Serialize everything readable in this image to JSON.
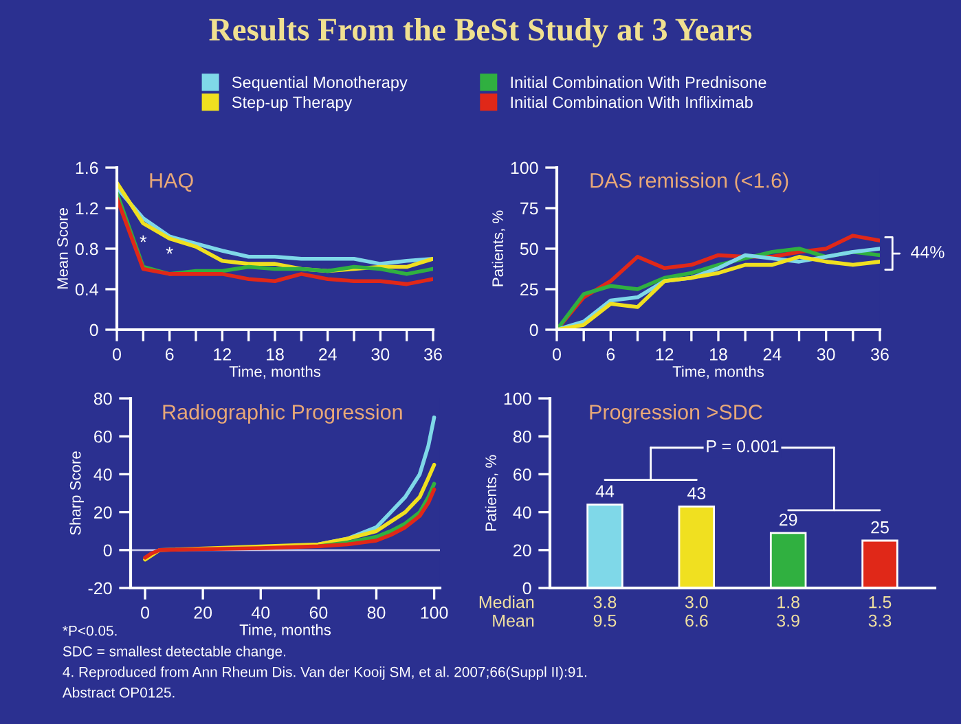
{
  "chart_data": [
    {
      "type": "other",
      "title": "Results From the BeSt Study at 3 Years",
      "annotations": [
        "*P<0.05.",
        "SDC = smallest detectable change.",
        "4. Reproduced from Ann Rheum Dis. Van der Kooij SM, et al. 2007;66(Suppl II):91.",
        "Abstract OP0125."
      ]
    },
    {
      "type": "line",
      "title": "HAQ",
      "xlabel": "Time, months",
      "ylabel": "Mean Score",
      "legend": "top",
      "grid": false,
      "x": [
        0,
        3,
        6,
        9,
        12,
        15,
        18,
        21,
        24,
        27,
        30,
        33,
        36
      ],
      "xlim": [
        0,
        36
      ],
      "xticks": [
        0,
        {
          "value": 3,
          "label": null
        },
        6,
        {
          "value": 9,
          "label": null
        },
        12,
        {
          "value": 15,
          "label": null
        },
        18,
        {
          "value": 21,
          "label": null
        },
        24,
        {
          "value": 27,
          "label": null
        },
        30,
        {
          "value": 33,
          "label": null
        },
        36
      ],
      "ylim": [
        0,
        1.6
      ],
      "yticks": [
        0,
        0.4,
        0.8,
        1.2,
        1.6
      ],
      "series": [
        {
          "name": "Sequential Monotherapy",
          "color": "#7fd8e8",
          "values": [
            1.4,
            1.1,
            0.92,
            0.85,
            0.78,
            0.72,
            0.72,
            0.7,
            0.7,
            0.7,
            0.65,
            0.68,
            0.7
          ]
        },
        {
          "name": "Step-up Therapy",
          "color": "#f0e020",
          "values": [
            1.45,
            1.05,
            0.9,
            0.82,
            0.68,
            0.65,
            0.65,
            0.6,
            0.58,
            0.6,
            0.62,
            0.62,
            0.7
          ]
        },
        {
          "name": "Initial Combination With Prednisone",
          "color": "#30b040",
          "values": [
            1.35,
            0.62,
            0.55,
            0.58,
            0.58,
            0.62,
            0.6,
            0.6,
            0.58,
            0.62,
            0.6,
            0.55,
            0.6
          ]
        },
        {
          "name": "Initial Combination With Infliximab",
          "color": "#e02818",
          "values": [
            1.3,
            0.6,
            0.55,
            0.55,
            0.55,
            0.5,
            0.48,
            0.55,
            0.5,
            0.48,
            0.48,
            0.45,
            0.5
          ]
        }
      ],
      "annotations": [
        "*",
        "*"
      ]
    },
    {
      "type": "line",
      "title": "DAS remission (<1.6)",
      "xlabel": "Time, months",
      "ylabel": "Patients, %",
      "grid": false,
      "x": [
        0,
        3,
        6,
        9,
        12,
        15,
        18,
        21,
        24,
        27,
        30,
        33,
        36
      ],
      "xlim": [
        0,
        36
      ],
      "xticks": [
        0,
        {
          "value": 3,
          "label": null
        },
        6,
        {
          "value": 9,
          "label": null
        },
        12,
        {
          "value": 15,
          "label": null
        },
        18,
        {
          "value": 21,
          "label": null
        },
        24,
        {
          "value": 27,
          "label": null
        },
        30,
        {
          "value": 33,
          "label": null
        },
        36
      ],
      "ylim": [
        0,
        100
      ],
      "yticks": [
        0,
        25,
        50,
        75,
        100
      ],
      "series": [
        {
          "color": "#e02818",
          "values": [
            0,
            20,
            30,
            45,
            38,
            40,
            46,
            45,
            45,
            48,
            50,
            58,
            55
          ]
        },
        {
          "color": "#30b040",
          "values": [
            0,
            22,
            27,
            25,
            32,
            35,
            40,
            44,
            48,
            50,
            45,
            48,
            46
          ]
        },
        {
          "color": "#7fd8e8",
          "values": [
            0,
            5,
            18,
            20,
            30,
            32,
            38,
            46,
            44,
            42,
            45,
            48,
            50
          ]
        },
        {
          "color": "#f0e020",
          "values": [
            0,
            3,
            16,
            14,
            30,
            32,
            35,
            40,
            40,
            45,
            42,
            40,
            42
          ]
        }
      ],
      "annotations": [
        {
          "text": "44%",
          "x": 36,
          "y": 47
        }
      ]
    },
    {
      "type": "line",
      "title": "Radiographic Progression",
      "xlabel": "Time, months",
      "ylabel": "Sharp Score",
      "grid": false,
      "x": [
        0,
        2,
        5,
        20,
        40,
        60,
        70,
        80,
        85,
        90,
        95,
        98,
        100
      ],
      "xlim": [
        -5,
        102
      ],
      "xticks": [
        0,
        20,
        40,
        60,
        80,
        100
      ],
      "ylim": [
        -20,
        80
      ],
      "yticks": [
        -20,
        0,
        20,
        40,
        60,
        80
      ],
      "ref_lines": [
        {
          "axis": "y",
          "value": 0,
          "color": "#c8c8e8"
        }
      ],
      "series": [
        {
          "color": "#7fd8e8",
          "values": [
            null,
            null,
            null,
            null,
            null,
            3,
            6,
            12,
            20,
            28,
            40,
            55,
            70
          ]
        },
        {
          "color": "#f0e020",
          "values": [
            -5,
            -3,
            0,
            null,
            null,
            3,
            6,
            10,
            15,
            20,
            28,
            38,
            45
          ]
        },
        {
          "color": "#30b040",
          "values": [
            null,
            null,
            null,
            null,
            null,
            2,
            4,
            7,
            10,
            14,
            20,
            28,
            35
          ]
        },
        {
          "color": "#e02818",
          "values": [
            -4,
            -2,
            0,
            0.5,
            1,
            2,
            3,
            5,
            8,
            12,
            18,
            25,
            32
          ]
        }
      ]
    },
    {
      "type": "bar",
      "title": "Progression >SDC",
      "ylabel": "Patients, %",
      "grid": false,
      "data_labels": true,
      "categories": [
        "3.8\n9.5",
        "3.0\n6.6",
        "1.8\n3.9",
        "1.5\n3.3"
      ],
      "values": [
        44,
        43,
        29,
        25
      ],
      "colors": [
        "#7fd8e8",
        "#f0e020",
        "#30b040",
        "#e02818"
      ],
      "ylim": [
        0,
        100
      ],
      "yticks": [
        0,
        20,
        40,
        60,
        80,
        100
      ],
      "annotations": [
        "P = 0.001",
        "Median\nMean"
      ]
    }
  ]
}
